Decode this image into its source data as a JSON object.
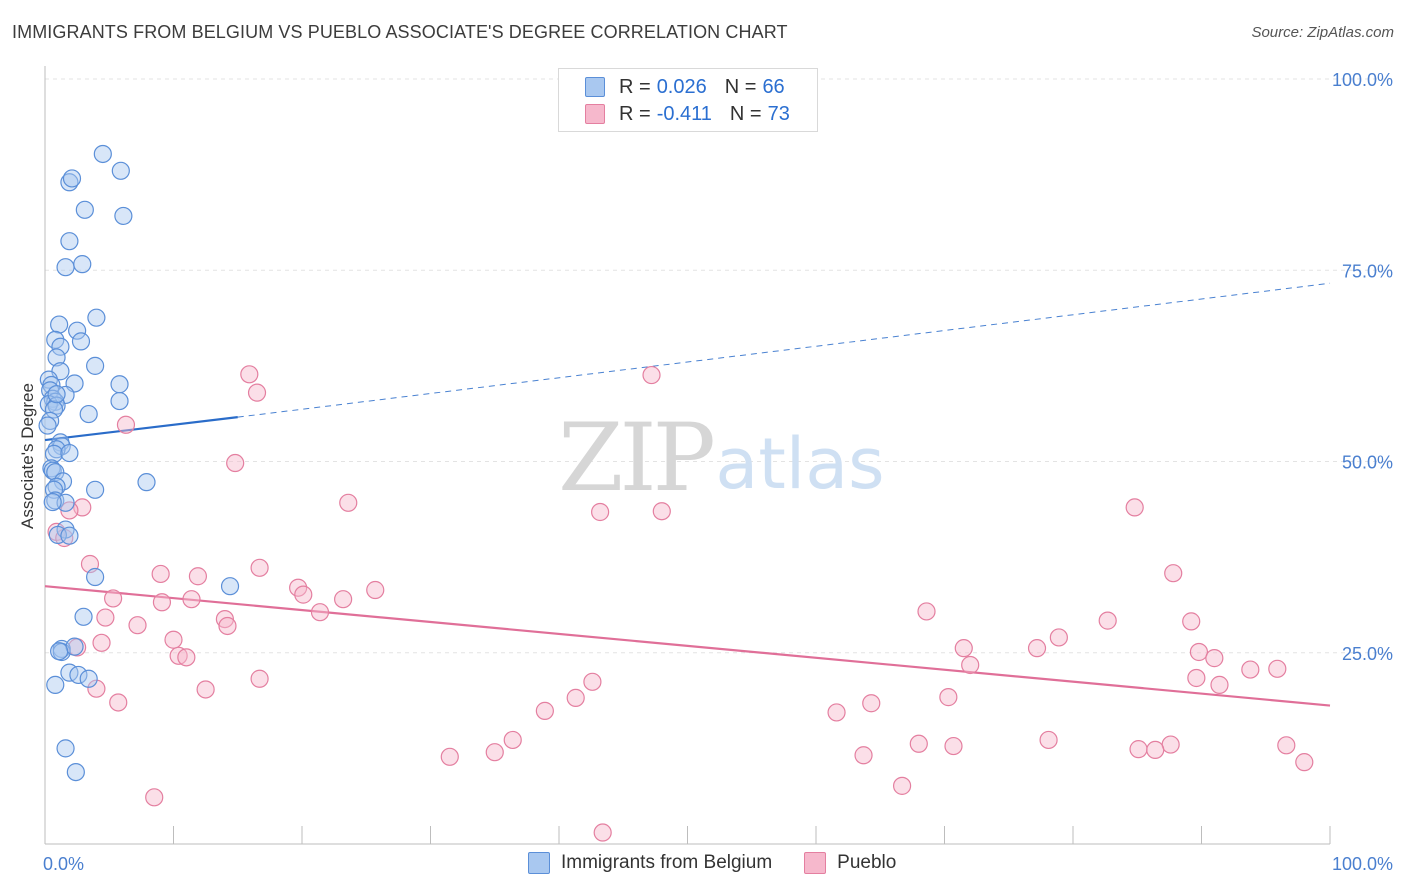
{
  "title": "IMMIGRANTS FROM BELGIUM VS PUEBLO ASSOCIATE'S DEGREE CORRELATION CHART",
  "source": "Source: ZipAtlas.com",
  "watermark": {
    "zip": "ZIP",
    "atlas": "atlas"
  },
  "legend": {
    "rows": [
      {
        "r_label": "R =",
        "r_value": "0.026",
        "n_label": "N =",
        "n_value": "66"
      },
      {
        "r_label": "R =",
        "r_value": "-0.411",
        "n_label": "N =",
        "n_value": "73"
      }
    ]
  },
  "bottom_legend": [
    "Immigrants from Belgium",
    "Pueblo"
  ],
  "colors": {
    "blue_fill": "#a9c8f0",
    "blue_stroke": "#5b8fd8",
    "blue_line": "#2a6cc9",
    "pink_fill": "#f6b8cc",
    "pink_stroke": "#e47fa0",
    "pink_line": "#e06f98",
    "tick_text": "#4a7fcf"
  },
  "chart_data": {
    "type": "scatter",
    "title": "IMMIGRANTS FROM BELGIUM VS PUEBLO ASSOCIATE'S DEGREE CORRELATION CHART",
    "xlabel": "",
    "ylabel": "Associate's Degree",
    "xlim": [
      0,
      100
    ],
    "ylim": [
      0,
      100
    ],
    "y_ticks": [
      {
        "value": 100,
        "label": "100.0%"
      },
      {
        "value": 75,
        "label": "75.0%"
      },
      {
        "value": 50,
        "label": "50.0%"
      },
      {
        "value": 25,
        "label": "25.0%"
      }
    ],
    "x_tick_labels": [
      {
        "value": 0,
        "label": "0.0%"
      },
      {
        "value": 100,
        "label": "100.0%"
      }
    ],
    "series": [
      {
        "name": "Immigrants from Belgium",
        "color": "blue",
        "trend": {
          "x0": 0,
          "y0": 52.8,
          "x1": 15,
          "y1": 55.8,
          "dashed_x1": 100,
          "dashed_y1": 73.3
        },
        "points": [
          [
            4.5,
            90.2
          ],
          [
            5.9,
            88.0
          ],
          [
            1.9,
            86.5
          ],
          [
            2.1,
            87.0
          ],
          [
            3.1,
            82.9
          ],
          [
            6.1,
            82.1
          ],
          [
            1.9,
            78.8
          ],
          [
            1.6,
            75.4
          ],
          [
            2.9,
            75.8
          ],
          [
            4.0,
            68.8
          ],
          [
            1.1,
            67.9
          ],
          [
            2.5,
            67.1
          ],
          [
            0.8,
            65.9
          ],
          [
            1.2,
            65.0
          ],
          [
            2.8,
            65.7
          ],
          [
            0.9,
            63.6
          ],
          [
            3.9,
            62.5
          ],
          [
            1.2,
            61.8
          ],
          [
            0.3,
            60.7
          ],
          [
            0.5,
            60.0
          ],
          [
            2.3,
            60.2
          ],
          [
            5.8,
            60.1
          ],
          [
            0.4,
            59.3
          ],
          [
            1.6,
            58.7
          ],
          [
            0.6,
            58.2
          ],
          [
            0.8,
            57.8
          ],
          [
            5.8,
            57.9
          ],
          [
            0.3,
            57.5
          ],
          [
            0.9,
            57.3
          ],
          [
            0.7,
            56.8
          ],
          [
            3.4,
            56.2
          ],
          [
            0.4,
            55.3
          ],
          [
            0.2,
            54.7
          ],
          [
            1.2,
            52.5
          ],
          [
            1.3,
            52.0
          ],
          [
            0.9,
            51.6
          ],
          [
            0.7,
            51.0
          ],
          [
            1.9,
            51.1
          ],
          [
            0.5,
            49.1
          ],
          [
            0.6,
            48.8
          ],
          [
            0.8,
            48.6
          ],
          [
            1.4,
            47.4
          ],
          [
            7.9,
            47.3
          ],
          [
            0.9,
            46.7
          ],
          [
            0.7,
            46.3
          ],
          [
            3.9,
            46.3
          ],
          [
            0.8,
            44.9
          ],
          [
            1.6,
            44.6
          ],
          [
            0.6,
            44.7
          ],
          [
            1.6,
            41.1
          ],
          [
            1.0,
            40.4
          ],
          [
            1.9,
            40.3
          ],
          [
            3.9,
            34.9
          ],
          [
            14.4,
            33.7
          ],
          [
            3.0,
            29.7
          ],
          [
            1.3,
            25.5
          ],
          [
            1.3,
            25.1
          ],
          [
            2.3,
            25.8
          ],
          [
            1.9,
            22.4
          ],
          [
            2.6,
            22.1
          ],
          [
            3.4,
            21.6
          ],
          [
            0.8,
            20.8
          ],
          [
            1.6,
            12.5
          ],
          [
            2.4,
            9.4
          ],
          [
            1.1,
            25.2
          ],
          [
            0.9,
            58.8
          ]
        ]
      },
      {
        "name": "Pueblo",
        "color": "pink",
        "trend": {
          "x0": 0,
          "y0": 33.7,
          "x1": 100,
          "y1": 18.1
        },
        "points": [
          [
            15.9,
            61.4
          ],
          [
            16.5,
            59.0
          ],
          [
            47.2,
            61.3
          ],
          [
            6.3,
            54.8
          ],
          [
            14.8,
            49.8
          ],
          [
            2.9,
            44.0
          ],
          [
            23.6,
            44.6
          ],
          [
            43.2,
            43.4
          ],
          [
            84.8,
            44.0
          ],
          [
            1.9,
            43.6
          ],
          [
            0.9,
            40.8
          ],
          [
            1.5,
            40.0
          ],
          [
            3.5,
            36.6
          ],
          [
            16.7,
            36.1
          ],
          [
            9.0,
            35.3
          ],
          [
            11.9,
            35.0
          ],
          [
            87.8,
            35.4
          ],
          [
            19.7,
            33.5
          ],
          [
            25.7,
            33.2
          ],
          [
            20.1,
            32.6
          ],
          [
            5.3,
            32.1
          ],
          [
            11.4,
            32.0
          ],
          [
            9.1,
            31.6
          ],
          [
            23.2,
            32.0
          ],
          [
            21.4,
            30.3
          ],
          [
            68.6,
            30.4
          ],
          [
            4.7,
            29.6
          ],
          [
            14.0,
            29.4
          ],
          [
            7.2,
            28.6
          ],
          [
            14.2,
            28.5
          ],
          [
            82.7,
            29.2
          ],
          [
            89.2,
            29.1
          ],
          [
            10.0,
            26.7
          ],
          [
            78.9,
            27.0
          ],
          [
            4.4,
            26.3
          ],
          [
            2.5,
            25.7
          ],
          [
            71.5,
            25.6
          ],
          [
            77.2,
            25.6
          ],
          [
            10.4,
            24.6
          ],
          [
            11.0,
            24.4
          ],
          [
            89.8,
            25.1
          ],
          [
            91.0,
            24.3
          ],
          [
            72.0,
            23.4
          ],
          [
            93.8,
            22.8
          ],
          [
            95.9,
            22.9
          ],
          [
            16.7,
            21.6
          ],
          [
            42.6,
            21.2
          ],
          [
            89.6,
            21.7
          ],
          [
            91.4,
            20.8
          ],
          [
            4.0,
            20.3
          ],
          [
            12.5,
            20.2
          ],
          [
            41.3,
            19.1
          ],
          [
            70.3,
            19.2
          ],
          [
            5.7,
            18.5
          ],
          [
            64.3,
            18.4
          ],
          [
            38.9,
            17.4
          ],
          [
            61.6,
            17.2
          ],
          [
            36.4,
            13.6
          ],
          [
            68.0,
            13.1
          ],
          [
            70.7,
            12.8
          ],
          [
            78.1,
            13.6
          ],
          [
            87.6,
            13.0
          ],
          [
            85.1,
            12.4
          ],
          [
            86.4,
            12.3
          ],
          [
            96.6,
            12.9
          ],
          [
            35.0,
            12.0
          ],
          [
            31.5,
            11.4
          ],
          [
            63.7,
            11.6
          ],
          [
            98.0,
            10.7
          ],
          [
            66.7,
            7.6
          ],
          [
            8.5,
            6.1
          ],
          [
            43.4,
            1.5
          ],
          [
            48.0,
            43.5
          ]
        ]
      }
    ]
  }
}
